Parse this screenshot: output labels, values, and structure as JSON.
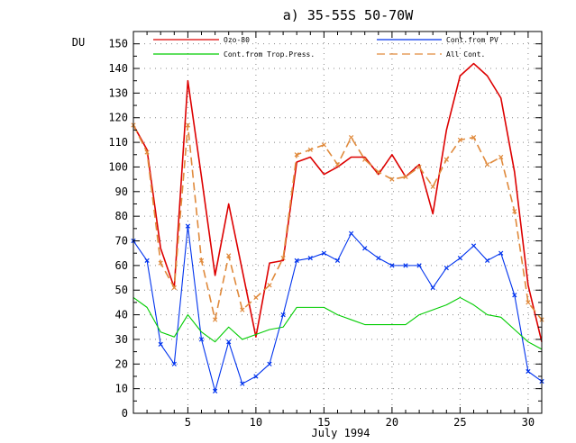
{
  "chart_data": {
    "type": "line",
    "title": "a) 35-55S 50-70W",
    "ylabel": "DU",
    "xlabel": "July 1994",
    "xlim": [
      1,
      31
    ],
    "ylim": [
      0,
      155
    ],
    "xticks": [
      5,
      10,
      15,
      20,
      25,
      30
    ],
    "yticks": [
      0,
      10,
      20,
      30,
      40,
      50,
      60,
      70,
      80,
      90,
      100,
      110,
      120,
      130,
      140,
      150
    ],
    "grid": "dotted",
    "legend_placement": "top",
    "x": [
      1,
      2,
      3,
      4,
      5,
      6,
      7,
      8,
      9,
      10,
      11,
      12,
      13,
      14,
      15,
      16,
      17,
      18,
      19,
      20,
      21,
      22,
      23,
      24,
      25,
      26,
      27,
      28,
      29,
      30,
      31
    ],
    "series": [
      {
        "name": "Ozo-80",
        "color": "#dd0000",
        "style": "solid",
        "marker": "none",
        "values": [
          117,
          107,
          67,
          51,
          135,
          96,
          56,
          85,
          58,
          31,
          61,
          62,
          102,
          104,
          97,
          100,
          104,
          104,
          97,
          105,
          96,
          101,
          81,
          115,
          137,
          142,
          137,
          128,
          98,
          52,
          29
        ]
      },
      {
        "name": "Cont.from PV",
        "color": "#0033ee",
        "style": "solid",
        "marker": "x",
        "values": [
          70,
          62,
          28,
          20,
          76,
          30,
          9,
          29,
          12,
          15,
          20,
          40,
          62,
          63,
          65,
          62,
          73,
          67,
          63,
          60,
          60,
          60,
          51,
          59,
          63,
          68,
          62,
          65,
          48,
          17,
          13
        ]
      },
      {
        "name": "Cont.from Trop.Press.",
        "color": "#00cc00",
        "style": "solid",
        "marker": "none",
        "values": [
          47,
          43,
          33,
          31,
          40,
          33,
          29,
          35,
          30,
          32,
          34,
          35,
          43,
          43,
          43,
          40,
          38,
          36,
          36,
          36,
          36,
          40,
          42,
          44,
          47,
          44,
          40,
          39,
          34,
          29,
          26
        ]
      },
      {
        "name": "All Cont.",
        "color": "#e08a3c",
        "style": "dashed",
        "marker": "x",
        "values": [
          117,
          106,
          61,
          51,
          117,
          62,
          38,
          64,
          42,
          47,
          52,
          63,
          105,
          107,
          109,
          101,
          112,
          103,
          98,
          95,
          96,
          100,
          92,
          103,
          111,
          112,
          101,
          104,
          82,
          45,
          38
        ]
      }
    ]
  }
}
